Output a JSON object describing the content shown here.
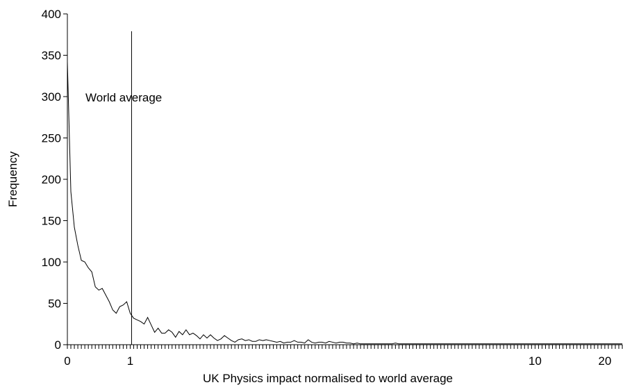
{
  "chart_data": {
    "type": "line",
    "title": "",
    "xlabel": "UK Physics impact normalised to world average",
    "ylabel": "Frequency",
    "ylim": [
      0,
      400
    ],
    "yticks": [
      "0",
      "50",
      "100",
      "150",
      "200",
      "250",
      "300",
      "350",
      "400"
    ],
    "x_axis": {
      "bin_count": 160,
      "bin_width": 0.05,
      "tick_labels": [
        {
          "label": "0",
          "bin": 0
        },
        {
          "label": "1",
          "bin": 18
        },
        {
          "label": "10",
          "bin": 134
        },
        {
          "label": "20",
          "bin": 154
        }
      ]
    },
    "reference_line": {
      "label": "World average",
      "bin": 18
    },
    "grid": false,
    "legend": "none",
    "series": [
      {
        "values": [
          342,
          185,
          142,
          120,
          102,
          100,
          93,
          88,
          70,
          66,
          68,
          60,
          52,
          42,
          38,
          46,
          48,
          52,
          38,
          32,
          30,
          28,
          25,
          33,
          24,
          15,
          20,
          14,
          14,
          18,
          15,
          9,
          16,
          12,
          18,
          12,
          14,
          11,
          7,
          12,
          8,
          12,
          8,
          5,
          7,
          11,
          8,
          5,
          3,
          6,
          7,
          5,
          6,
          4,
          4,
          6,
          5,
          6,
          5,
          4,
          3,
          4,
          2,
          3,
          3,
          5,
          3,
          3,
          2,
          6,
          3,
          2,
          3,
          3,
          2,
          4,
          3,
          2,
          3,
          3,
          2,
          2,
          1,
          2,
          1,
          1,
          1,
          1,
          1,
          1,
          1,
          1,
          1,
          1,
          2,
          1,
          1,
          1,
          1,
          1,
          1,
          1,
          1,
          1,
          1,
          1,
          1,
          1,
          1,
          1,
          1,
          1,
          1,
          1,
          1,
          1,
          1,
          1,
          1,
          1,
          1,
          1,
          1,
          1,
          1,
          1,
          1,
          1,
          1,
          1,
          1,
          1,
          1,
          1,
          1,
          1,
          1,
          1,
          1,
          1,
          1,
          1,
          1,
          1,
          1,
          1,
          1,
          1,
          1,
          1,
          1,
          1,
          1,
          1,
          1,
          1,
          1,
          1,
          1,
          1
        ]
      }
    ]
  }
}
